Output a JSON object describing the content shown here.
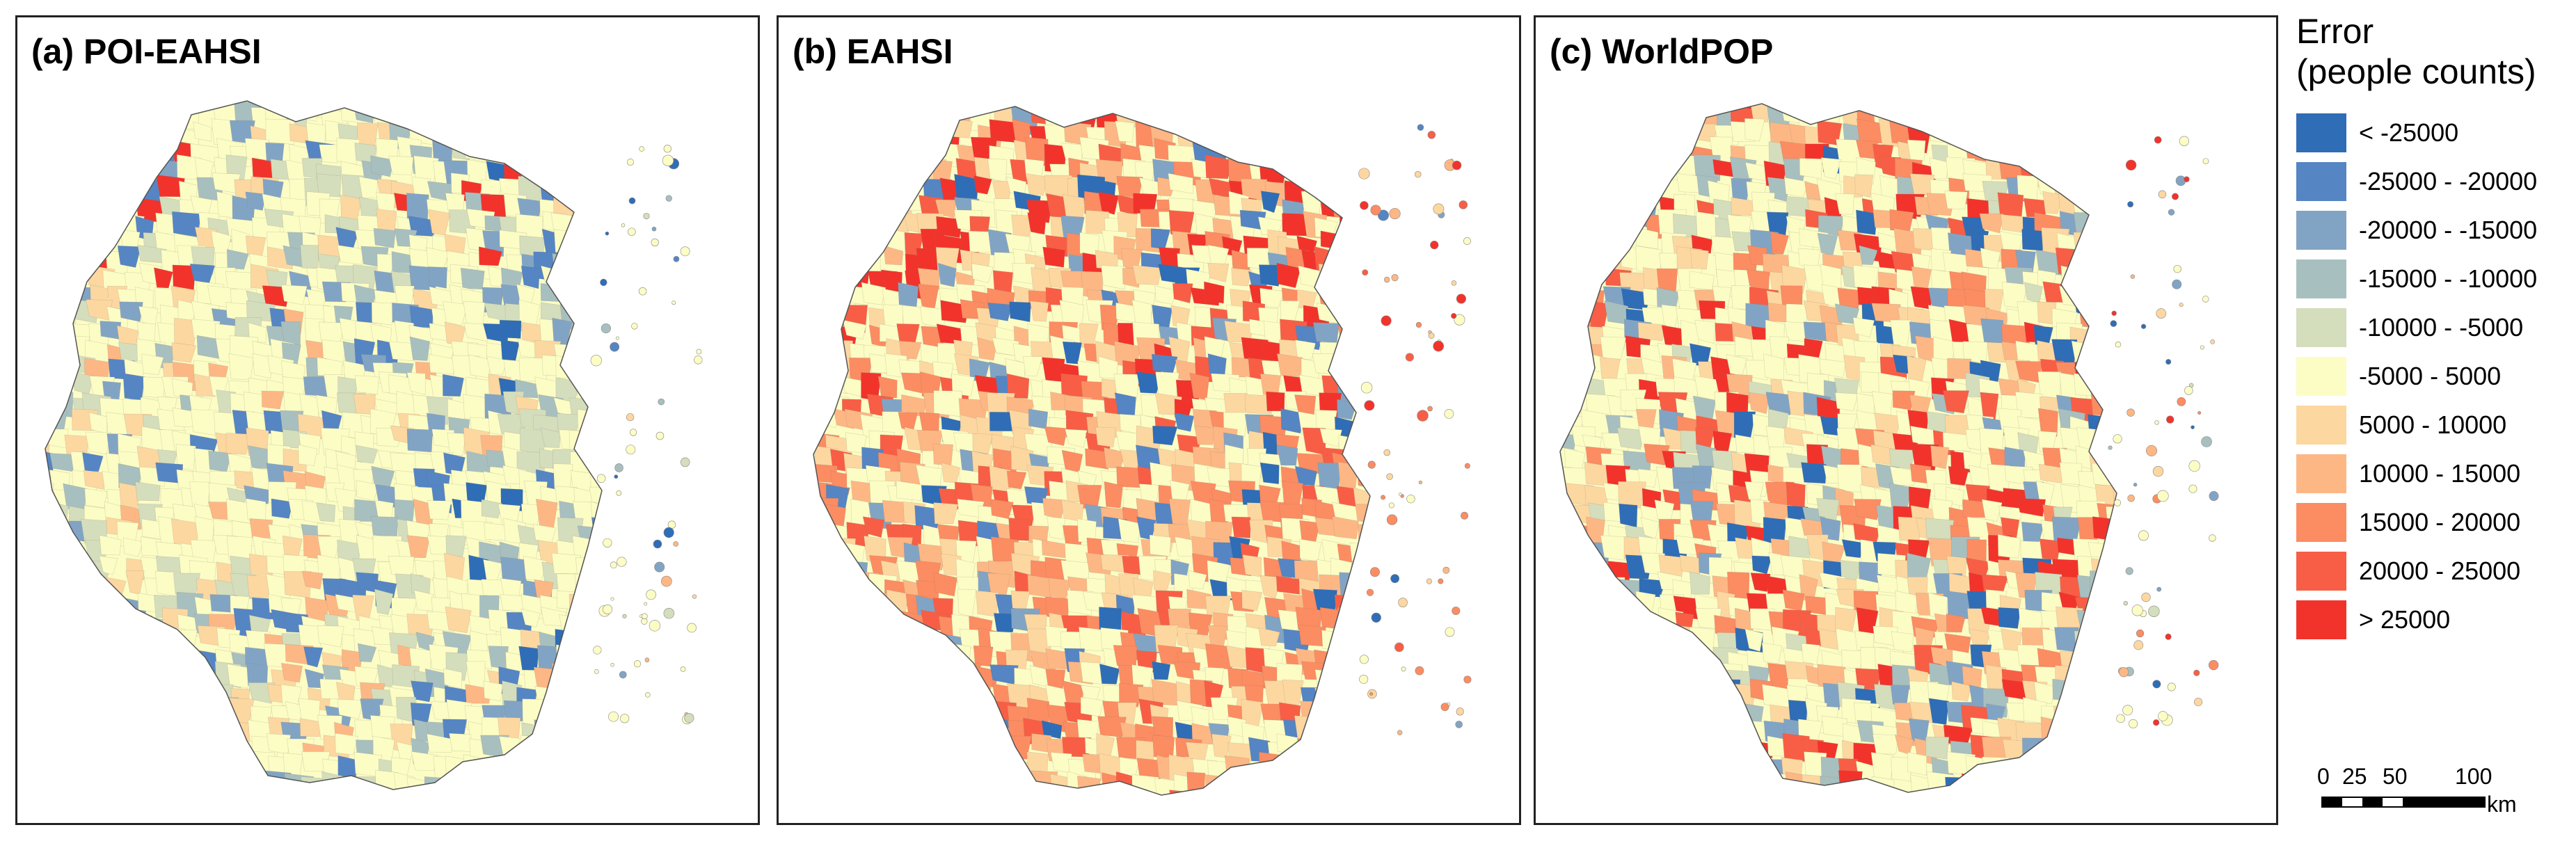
{
  "panels": [
    {
      "title": "(a) POI-EAHSI",
      "bias": "cool"
    },
    {
      "title": "(b) EAHSI",
      "bias": "warm"
    },
    {
      "title": "(c) WorldPOP",
      "bias": "mixed"
    }
  ],
  "legend": {
    "title_line1": "Error",
    "title_line2": "(people counts)",
    "items": [
      {
        "label": "< -25000",
        "color": "#2f6db6"
      },
      {
        "label": "-25000 - -20000",
        "color": "#5585c3"
      },
      {
        "label": "-20000 - -15000",
        "color": "#82a4c4"
      },
      {
        "label": "-15000 - -10000",
        "color": "#a8bfbf"
      },
      {
        "label": "-10000 - -5000",
        "color": "#d4ddbc"
      },
      {
        "label": "-5000 - 5000",
        "color": "#fcfcc5"
      },
      {
        "label": "5000 - 10000",
        "color": "#fdd7a0"
      },
      {
        "label": "10000 - 15000",
        "color": "#fdb784"
      },
      {
        "label": "15000 - 20000",
        "color": "#fc8c62"
      },
      {
        "label": "20000 - 25000",
        "color": "#f85e45"
      },
      {
        "label": "> 25000",
        "color": "#f2332c"
      }
    ]
  },
  "scale": {
    "labels": [
      "0",
      "25",
      "50",
      "100"
    ],
    "unit": "km"
  }
}
